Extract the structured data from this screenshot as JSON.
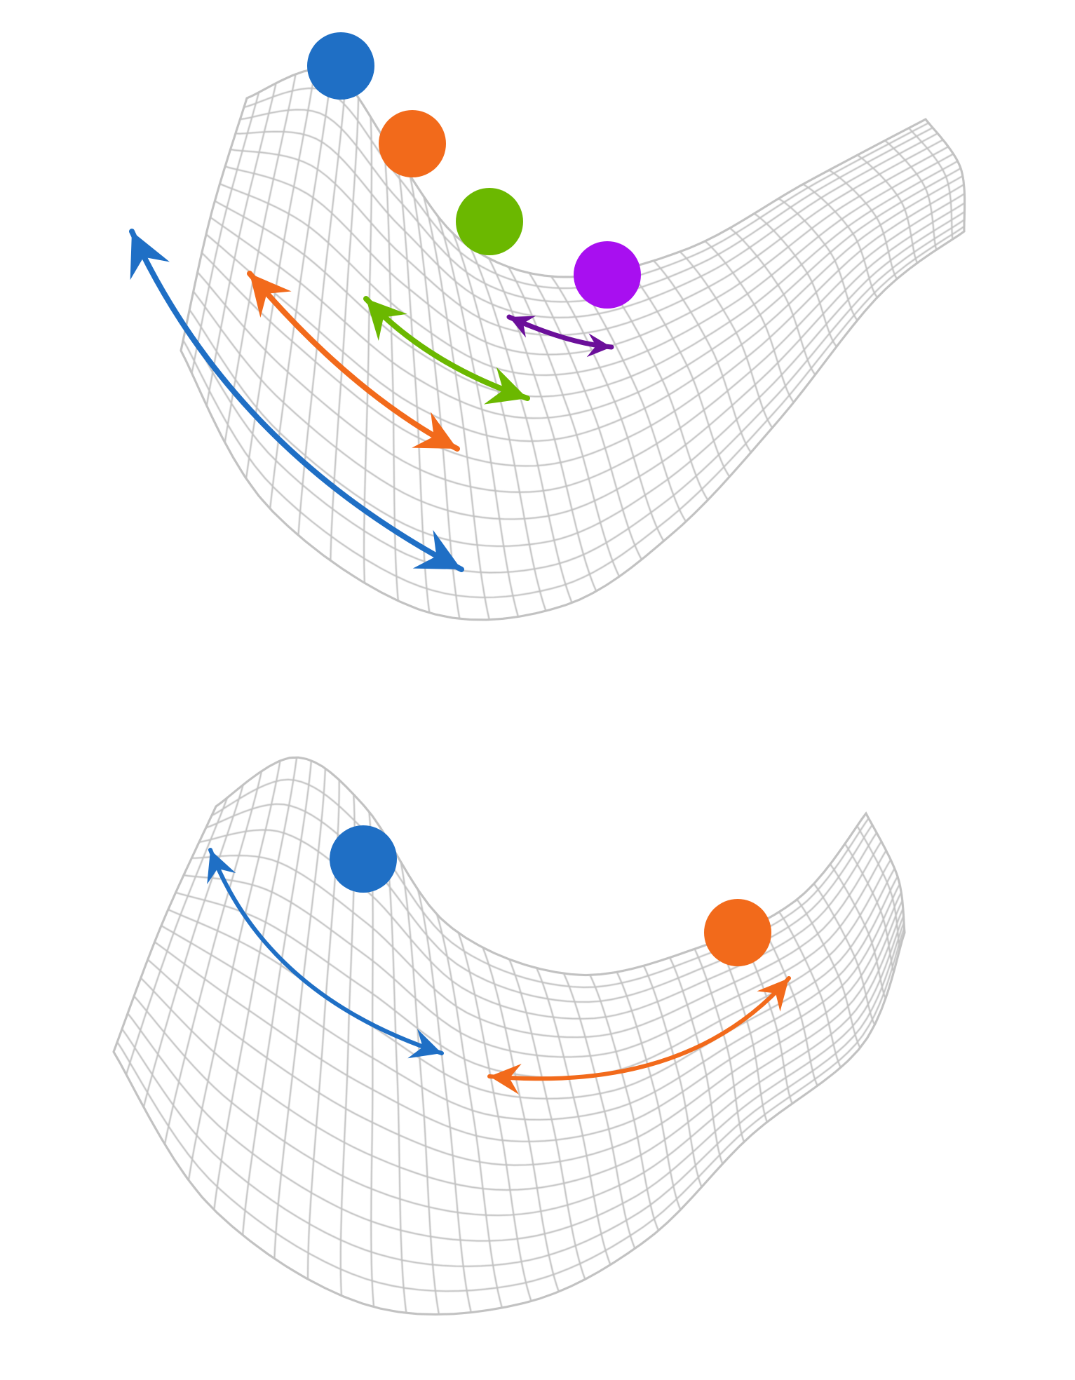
{
  "colors": {
    "blue": "#1f6fc5",
    "orange": "#f26a1b",
    "green": "#6bb800",
    "purple": "#a80ff0",
    "dark_purple": "#6b0f9a",
    "mesh": "#c2c2c2",
    "mesh_fill": "#ffffff"
  },
  "panels": [
    {
      "name": "top-panel",
      "surface": "saddle-mesh",
      "balls": [
        "blue",
        "orange",
        "green",
        "purple"
      ],
      "arrows": [
        "blue",
        "orange",
        "green",
        "dark_purple"
      ]
    },
    {
      "name": "bottom-panel",
      "surface": "saddle-mesh",
      "balls": [
        "blue",
        "orange"
      ],
      "arrows": [
        "blue",
        "orange"
      ]
    }
  ]
}
